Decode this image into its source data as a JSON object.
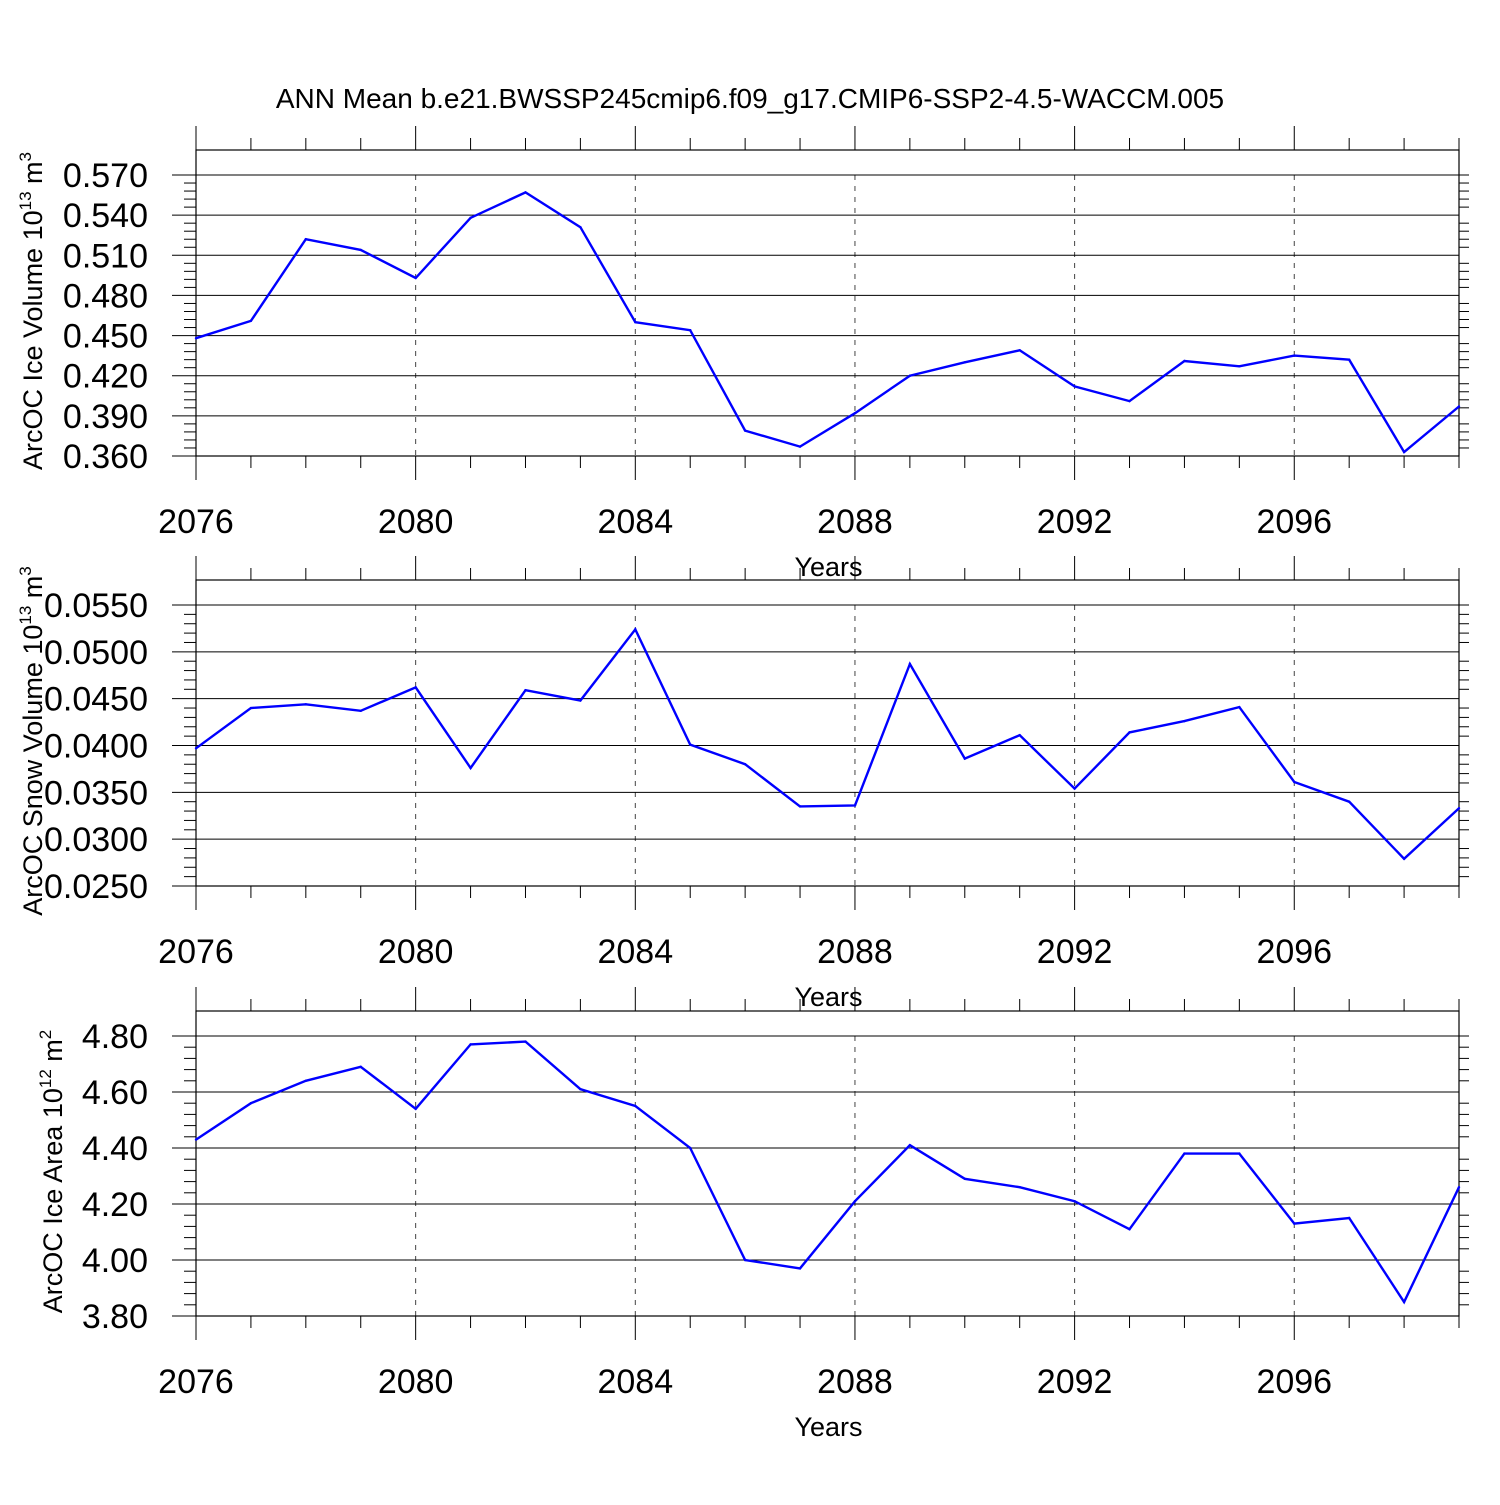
{
  "title": "ANN Mean b.e21.BWSSP245cmip6.f09_g17.CMIP6-SSP2-4.5-WACCM.005",
  "line_color": "#0000ff",
  "chart_data": [
    {
      "type": "line",
      "xlabel": "Years",
      "ylabel": {
        "text": "ArcOC Ice Volume 10",
        "sup": "13",
        "unit": " m",
        "unit_sup": "3"
      },
      "xlim": [
        2076,
        2099
      ],
      "ylim": [
        0.36,
        0.57
      ],
      "xticks": [
        2076,
        2080,
        2084,
        2088,
        2092,
        2096
      ],
      "yticks": [
        "0.360",
        "0.390",
        "0.420",
        "0.450",
        "0.480",
        "0.510",
        "0.540",
        "0.570"
      ],
      "grid": "vertical dashed at major x ticks",
      "x": [
        2076,
        2077,
        2078,
        2079,
        2080,
        2081,
        2082,
        2083,
        2084,
        2085,
        2086,
        2087,
        2088,
        2089,
        2090,
        2091,
        2092,
        2093,
        2094,
        2095,
        2096,
        2097,
        2098,
        2099
      ],
      "y": [
        0.448,
        0.461,
        0.522,
        0.514,
        0.493,
        0.538,
        0.557,
        0.531,
        0.46,
        0.454,
        0.379,
        0.367,
        0.392,
        0.42,
        0.43,
        0.439,
        0.412,
        0.401,
        0.431,
        0.427,
        0.435,
        0.432,
        0.363,
        0.397
      ]
    },
    {
      "type": "line",
      "xlabel": "Years",
      "ylabel": {
        "text": "ArcOC Snow Volume 10",
        "sup": "13",
        "unit": " m",
        "unit_sup": "3"
      },
      "xlim": [
        2076,
        2099
      ],
      "ylim": [
        0.025,
        0.055
      ],
      "xticks": [
        2076,
        2080,
        2084,
        2088,
        2092,
        2096
      ],
      "yticks": [
        "0.0250",
        "0.0300",
        "0.0350",
        "0.0400",
        "0.0450",
        "0.0500",
        "0.0550"
      ],
      "grid": "vertical dashed at major x ticks",
      "x": [
        2076,
        2077,
        2078,
        2079,
        2080,
        2081,
        2082,
        2083,
        2084,
        2085,
        2086,
        2087,
        2088,
        2089,
        2090,
        2091,
        2092,
        2093,
        2094,
        2095,
        2096,
        2097,
        2098,
        2099
      ],
      "y": [
        0.0397,
        0.044,
        0.0444,
        0.0437,
        0.0462,
        0.0376,
        0.0459,
        0.0448,
        0.0524,
        0.0401,
        0.038,
        0.0335,
        0.0336,
        0.0487,
        0.0386,
        0.0411,
        0.0354,
        0.0414,
        0.0426,
        0.0441,
        0.0361,
        0.034,
        0.0279,
        0.0333
      ]
    },
    {
      "type": "line",
      "xlabel": "Years",
      "ylabel": {
        "text": "ArcOC Ice Area 10",
        "sup": "12",
        "unit": " m",
        "unit_sup": "2"
      },
      "xlim": [
        2076,
        2099
      ],
      "ylim": [
        3.8,
        4.8
      ],
      "xticks": [
        2076,
        2080,
        2084,
        2088,
        2092,
        2096
      ],
      "yticks": [
        "3.80",
        "4.00",
        "4.20",
        "4.40",
        "4.60",
        "4.80"
      ],
      "grid": "vertical dashed at major x ticks",
      "x": [
        2076,
        2077,
        2078,
        2079,
        2080,
        2081,
        2082,
        2083,
        2084,
        2085,
        2086,
        2087,
        2088,
        2089,
        2090,
        2091,
        2092,
        2093,
        2094,
        2095,
        2096,
        2097,
        2098,
        2099
      ],
      "y": [
        4.43,
        4.56,
        4.64,
        4.69,
        4.54,
        4.77,
        4.78,
        4.61,
        4.55,
        4.4,
        4.0,
        3.97,
        4.21,
        4.41,
        4.29,
        4.26,
        4.21,
        4.11,
        4.38,
        4.38,
        4.13,
        4.15,
        3.85,
        4.26
      ]
    }
  ]
}
